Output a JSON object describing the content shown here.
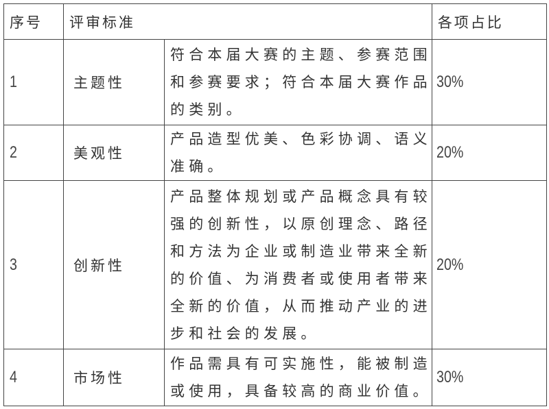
{
  "header": {
    "index": "序号",
    "criteria": "评审标准",
    "weight": "各项占比"
  },
  "rows": [
    {
      "index": "1",
      "criterion": "主题性",
      "lines": [
        "符合本届大赛的主题、参赛范围",
        "和参赛要求；符合本届大赛作品",
        "的类别。"
      ],
      "weight": "30%"
    },
    {
      "index": "2",
      "criterion": "美观性",
      "lines": [
        "产品造型优美、色彩协调、语义",
        "准确。"
      ],
      "weight": "20%"
    },
    {
      "index": "3",
      "criterion": "创新性",
      "lines": [
        "产品整体规划或产品概念具有较",
        "强的创新性，以原创理念、路径",
        "和方法为企业或制造业带来全新",
        "的价值、为消费者或使用者带来",
        "全新的价值，从而推动产业的进",
        "步和社会的发展。"
      ],
      "weight": "20%"
    },
    {
      "index": "4",
      "criterion": "市场性",
      "lines": [
        "作品需具有可实施性，能被制造",
        "或使用，具备较高的商业价值。"
      ],
      "weight": "30%"
    }
  ]
}
